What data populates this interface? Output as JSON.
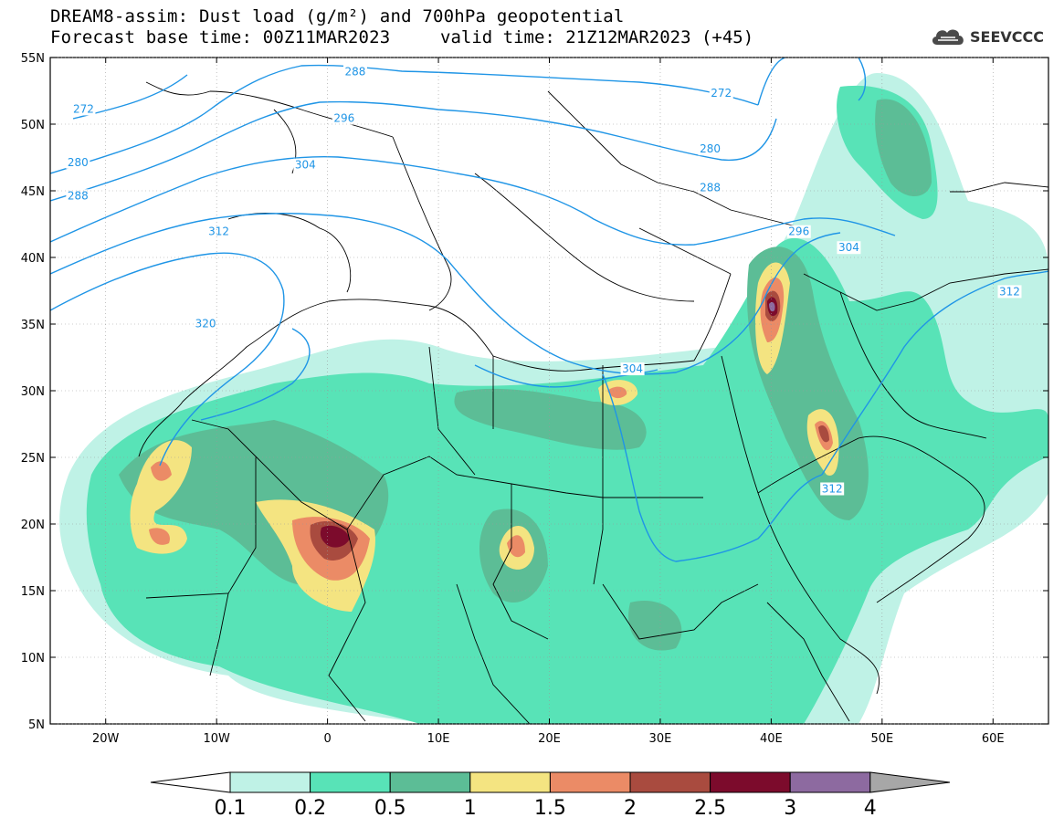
{
  "title_line1": "DREAM8-assim: Dust load (g/m²) and 700hPa geopotential",
  "title_line2": "Forecast base time: 00Z11MAR2023",
  "title_line2_right": "valid time: 21Z12MAR2023 (+45)",
  "logo_text": "SEEVCCC",
  "logo_icon": "cloud-logo-icon",
  "map": {
    "lon_range": [
      -25,
      65
    ],
    "lat_range": [
      5,
      55
    ],
    "lat_ticks": [
      {
        "v": 55,
        "label": "55N"
      },
      {
        "v": 50,
        "label": "50N"
      },
      {
        "v": 45,
        "label": "45N"
      },
      {
        "v": 40,
        "label": "40N"
      },
      {
        "v": 35,
        "label": "35N"
      },
      {
        "v": 30,
        "label": "30N"
      },
      {
        "v": 25,
        "label": "25N"
      },
      {
        "v": 20,
        "label": "20N"
      },
      {
        "v": 15,
        "label": "15N"
      },
      {
        "v": 10,
        "label": "10N"
      },
      {
        "v": 5,
        "label": "5N"
      }
    ],
    "lon_ticks": [
      {
        "v": -20,
        "label": "20W"
      },
      {
        "v": -10,
        "label": "10W"
      },
      {
        "v": 0,
        "label": "0"
      },
      {
        "v": 10,
        "label": "10E"
      },
      {
        "v": 20,
        "label": "20E"
      },
      {
        "v": 30,
        "label": "30E"
      },
      {
        "v": 40,
        "label": "40E"
      },
      {
        "v": 50,
        "label": "50E"
      },
      {
        "v": 60,
        "label": "60E"
      }
    ],
    "contour_labels": [
      {
        "text": "288",
        "lon": 2.5,
        "lat": 53.8
      },
      {
        "text": "272",
        "lon": -22.0,
        "lat": 51.0
      },
      {
        "text": "296",
        "lon": 1.5,
        "lat": 50.3
      },
      {
        "text": "280",
        "lon": -22.5,
        "lat": 47.0
      },
      {
        "text": "304",
        "lon": -2.0,
        "lat": 46.8
      },
      {
        "text": "288",
        "lon": -22.5,
        "lat": 44.5
      },
      {
        "text": "312",
        "lon": -9.8,
        "lat": 41.8
      },
      {
        "text": "320",
        "lon": -11.0,
        "lat": 34.9
      },
      {
        "text": "272",
        "lon": 35.5,
        "lat": 52.2
      },
      {
        "text": "280",
        "lon": 34.5,
        "lat": 48.0
      },
      {
        "text": "288",
        "lon": 34.5,
        "lat": 45.1
      },
      {
        "text": "296",
        "lon": 42.5,
        "lat": 41.8
      },
      {
        "text": "304",
        "lon": 47.0,
        "lat": 40.6
      },
      {
        "text": "304",
        "lon": 27.5,
        "lat": 31.5
      },
      {
        "text": "312",
        "lon": 61.5,
        "lat": 37.3
      },
      {
        "text": "312",
        "lon": 45.5,
        "lat": 22.5
      }
    ]
  },
  "colorbar": {
    "colors": [
      "#bff2e6",
      "#58e3b7",
      "#5cbd96",
      "#f4e481",
      "#eb8b66",
      "#a94b3f",
      "#7c0b2c",
      "#8d6aa0",
      "#a7a7a7"
    ],
    "labels": [
      "0.1",
      "0.2",
      "0.5",
      "1",
      "1.5",
      "2",
      "2.5",
      "3",
      "4"
    ]
  }
}
